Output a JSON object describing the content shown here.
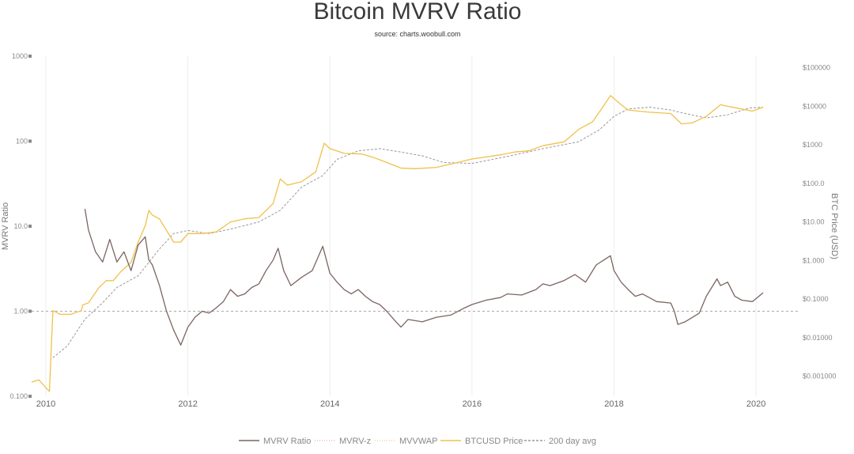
{
  "chart_data": {
    "type": "line",
    "title": "Bitcoin MVRV Ratio",
    "subtitle": "source: charts.woobull.com",
    "y_axis_left": {
      "label": "MVRV Ratio",
      "scale": "log",
      "range": [
        0.1,
        1000
      ],
      "ticks": [
        {
          "value": 0.1,
          "label": "0.100"
        },
        {
          "value": 1,
          "label": "1.00"
        },
        {
          "value": 10,
          "label": "10.0"
        },
        {
          "value": 100,
          "label": "100"
        },
        {
          "value": 1000,
          "label": "1000"
        }
      ]
    },
    "y_axis_right": {
      "label": "BTC Price (USD)",
      "scale": "log",
      "range": [
        0.0003,
        200000
      ],
      "ticks": [
        {
          "value": 0.001,
          "label": "$0.001000"
        },
        {
          "value": 0.01,
          "label": "$0.01000"
        },
        {
          "value": 0.1,
          "label": "$0.1000"
        },
        {
          "value": 1,
          "label": "$1.000"
        },
        {
          "value": 10,
          "label": "$10.00"
        },
        {
          "value": 100,
          "label": "$100.0"
        },
        {
          "value": 1000,
          "label": "$1000"
        },
        {
          "value": 10000,
          "label": "$10000"
        },
        {
          "value": 100000,
          "label": "$100000"
        }
      ]
    },
    "x_axis": {
      "range": [
        2009.8,
        2020.6
      ],
      "ticks": [
        {
          "value": 2010,
          "label": "2010"
        },
        {
          "value": 2012,
          "label": "2012"
        },
        {
          "value": 2014,
          "label": "2014"
        },
        {
          "value": 2016,
          "label": "2016"
        },
        {
          "value": 2018,
          "label": "2018"
        },
        {
          "value": 2020,
          "label": "2020"
        }
      ]
    },
    "reference_line": {
      "value": 1,
      "style": "dashed"
    },
    "grid": "vertical",
    "legend_position": "bottom",
    "series": [
      {
        "name": "MVRV Ratio",
        "axis": "left",
        "color": "#7b6461",
        "x": [
          2010.55,
          2010.6,
          2010.7,
          2010.8,
          2010.9,
          2011.0,
          2011.1,
          2011.2,
          2011.3,
          2011.4,
          2011.45,
          2011.5,
          2011.6,
          2011.7,
          2011.8,
          2011.9,
          2012.0,
          2012.1,
          2012.2,
          2012.3,
          2012.4,
          2012.5,
          2012.6,
          2012.7,
          2012.8,
          2012.9,
          2013.0,
          2013.1,
          2013.2,
          2013.27,
          2013.35,
          2013.45,
          2013.6,
          2013.75,
          2013.9,
          2014.0,
          2014.1,
          2014.2,
          2014.3,
          2014.4,
          2014.5,
          2014.6,
          2014.7,
          2014.8,
          2014.9,
          2015.0,
          2015.1,
          2015.3,
          2015.5,
          2015.7,
          2015.9,
          2016.0,
          2016.2,
          2016.4,
          2016.5,
          2016.7,
          2016.9,
          2017.0,
          2017.1,
          2017.3,
          2017.45,
          2017.6,
          2017.75,
          2017.95,
          2018.0,
          2018.1,
          2018.2,
          2018.3,
          2018.4,
          2018.6,
          2018.8,
          2018.85,
          2018.9,
          2019.0,
          2019.2,
          2019.3,
          2019.45,
          2019.5,
          2019.6,
          2019.7,
          2019.8,
          2019.95,
          2020.1
        ],
        "y": [
          16,
          9,
          5,
          3.8,
          7,
          3.8,
          5,
          3,
          6,
          7.5,
          4,
          3.5,
          2,
          1,
          0.6,
          0.4,
          0.65,
          0.85,
          1.0,
          0.95,
          1.1,
          1.3,
          1.8,
          1.5,
          1.6,
          1.9,
          2.1,
          3.0,
          4.0,
          5.5,
          3.0,
          2.0,
          2.5,
          3.0,
          5.8,
          2.8,
          2.2,
          1.8,
          1.6,
          1.8,
          1.5,
          1.3,
          1.2,
          1.0,
          0.8,
          0.65,
          0.8,
          0.75,
          0.85,
          0.9,
          1.1,
          1.2,
          1.35,
          1.45,
          1.6,
          1.55,
          1.8,
          2.1,
          2.0,
          2.3,
          2.7,
          2.2,
          3.5,
          4.5,
          3.0,
          2.2,
          1.8,
          1.5,
          1.6,
          1.3,
          1.25,
          1.0,
          0.7,
          0.75,
          0.95,
          1.5,
          2.4,
          2.0,
          2.2,
          1.5,
          1.35,
          1.3,
          1.65
        ]
      },
      {
        "name": "MVRV-z",
        "axis": "left",
        "color": "#f2b8b8",
        "dash": "dotted",
        "x": [],
        "y": []
      },
      {
        "name": "MVVWAP",
        "axis": "left",
        "color": "#f3d3a0",
        "dash": "dotted",
        "x": [],
        "y": []
      },
      {
        "name": "BTCUSD Price",
        "axis": "right",
        "color": "#f0c14b",
        "x": [
          2009.8,
          2009.9,
          2010.0,
          2010.05,
          2010.1,
          2010.2,
          2010.35,
          2010.5,
          2010.52,
          2010.6,
          2010.75,
          2010.85,
          2010.95,
          2011.05,
          2011.2,
          2011.3,
          2011.4,
          2011.45,
          2011.5,
          2011.6,
          2011.7,
          2011.8,
          2011.9,
          2012.0,
          2012.2,
          2012.4,
          2012.6,
          2012.8,
          2013.0,
          2013.2,
          2013.3,
          2013.4,
          2013.6,
          2013.8,
          2013.92,
          2014.0,
          2014.2,
          2014.45,
          2014.6,
          2014.8,
          2015.0,
          2015.2,
          2015.5,
          2015.8,
          2016.0,
          2016.4,
          2016.6,
          2016.8,
          2017.0,
          2017.3,
          2017.5,
          2017.7,
          2017.85,
          2017.95,
          2018.1,
          2018.2,
          2018.5,
          2018.8,
          2018.95,
          2019.1,
          2019.3,
          2019.5,
          2019.6,
          2019.8,
          2019.95,
          2020.1
        ],
        "y": [
          0.0007,
          0.0008,
          0.0005,
          0.0004,
          0.05,
          0.04,
          0.04,
          0.05,
          0.07,
          0.08,
          0.2,
          0.3,
          0.3,
          0.5,
          0.9,
          3,
          8,
          20,
          15,
          12,
          6,
          3,
          3,
          5,
          5,
          5.5,
          10,
          12,
          13,
          30,
          130,
          90,
          110,
          200,
          1100,
          800,
          600,
          580,
          480,
          350,
          250,
          240,
          260,
          350,
          430,
          550,
          650,
          700,
          950,
          1200,
          2500,
          4000,
          10000,
          19000,
          11000,
          8000,
          7000,
          6500,
          3500,
          3700,
          5500,
          11000,
          10000,
          8500,
          7500,
          9500
        ]
      },
      {
        "name": "200 day avg",
        "axis": "right",
        "color": "#999999",
        "dash": "dashed",
        "x": [
          2010.1,
          2010.3,
          2010.55,
          2010.8,
          2011.0,
          2011.3,
          2011.6,
          2011.8,
          2012.0,
          2012.3,
          2012.6,
          2013.0,
          2013.3,
          2013.6,
          2013.9,
          2014.1,
          2014.4,
          2014.7,
          2015.0,
          2015.3,
          2015.6,
          2016.0,
          2016.5,
          2017.0,
          2017.5,
          2017.8,
          2018.0,
          2018.2,
          2018.5,
          2018.8,
          2019.0,
          2019.3,
          2019.6,
          2019.9,
          2020.1
        ],
        "y": [
          0.003,
          0.006,
          0.03,
          0.08,
          0.2,
          0.4,
          2,
          5,
          6,
          5,
          6.5,
          10,
          20,
          80,
          160,
          420,
          700,
          800,
          650,
          520,
          350,
          330,
          500,
          800,
          1200,
          2500,
          5500,
          8500,
          9500,
          8000,
          6500,
          5000,
          6000,
          9000,
          9500
        ]
      }
    ]
  }
}
